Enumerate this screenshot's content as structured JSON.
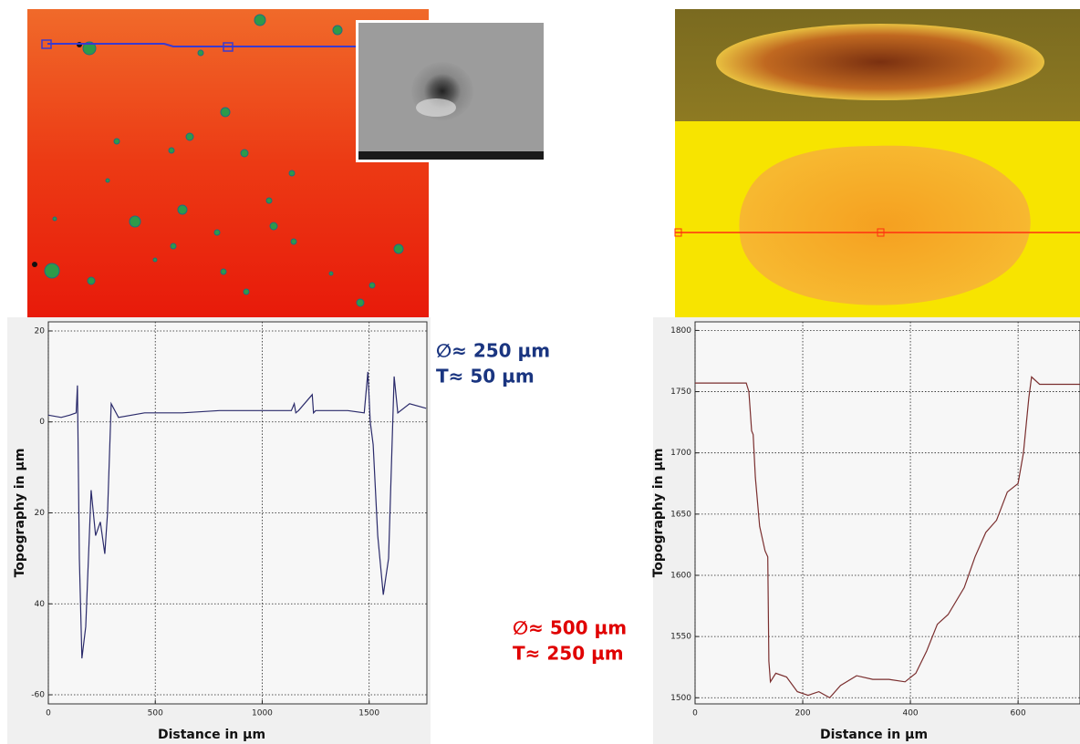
{
  "chart_data": [
    {
      "type": "line",
      "xlabel": "Distance in µm",
      "ylabel": "Topography  in µm",
      "annotations": [
        "∅≈ 250 µm",
        "T≈ 50 µm"
      ],
      "annotation_color": "#1a3580",
      "color": "#2b2b6b",
      "grid": true,
      "xlim": [
        0,
        1770
      ],
      "ylim": [
        -62,
        22
      ],
      "xticks": [
        0,
        500,
        1000,
        1500
      ],
      "yticks": [
        20,
        0,
        {
          "value": -20,
          "label": "20"
        },
        {
          "value": -40,
          "label": "40"
        },
        -60
      ],
      "x": [
        0,
        60,
        100,
        130,
        136,
        145,
        157,
        175,
        200,
        221,
        243,
        264,
        277,
        294,
        328,
        450,
        626,
        800,
        1000,
        1136,
        1150,
        1157,
        1170,
        1234,
        1240,
        1250,
        1400,
        1477,
        1494,
        1505,
        1519,
        1540,
        1566,
        1591,
        1617,
        1634,
        1689,
        1766
      ],
      "values": [
        1.5,
        1,
        1.5,
        2,
        8,
        -30,
        -52,
        -45,
        -15,
        -25,
        -22,
        -29,
        -20,
        4,
        1,
        2,
        2,
        2.5,
        2.5,
        2.5,
        4,
        2,
        2.5,
        6,
        2,
        2.5,
        2.5,
        2,
        11,
        0,
        -5,
        -25,
        -38,
        -30,
        10,
        2,
        4,
        3
      ]
    },
    {
      "type": "line",
      "xlabel": "Distance in µm",
      "ylabel": "Topography  in µm",
      "annotations": [
        "∅≈ 500 µm",
        "T≈ 250 µm"
      ],
      "annotation_color": "#e00000",
      "color": "#7a2e2e",
      "grid": true,
      "xlim": [
        0,
        715
      ],
      "ylim": [
        1495,
        1807
      ],
      "xticks": [
        0,
        200,
        400,
        600
      ],
      "yticks": [
        1500,
        1550,
        1600,
        1650,
        1700,
        1750,
        1800
      ],
      "x": [
        0,
        95,
        100,
        105,
        108,
        112,
        120,
        130,
        135,
        137,
        140,
        150,
        170,
        190,
        210,
        230,
        250,
        270,
        300,
        330,
        360,
        390,
        410,
        430,
        450,
        470,
        500,
        520,
        540,
        560,
        580,
        600,
        610,
        620,
        625,
        640,
        715
      ],
      "values": [
        1757,
        1757,
        1750,
        1718,
        1715,
        1680,
        1640,
        1620,
        1615,
        1530,
        1513,
        1520,
        1517,
        1505,
        1502,
        1505,
        1500,
        1510,
        1518,
        1515,
        1515,
        1513,
        1520,
        1538,
        1560,
        1568,
        1590,
        1615,
        1635,
        1645,
        1668,
        1675,
        1700,
        1745,
        1762,
        1756,
        1756
      ]
    }
  ]
}
